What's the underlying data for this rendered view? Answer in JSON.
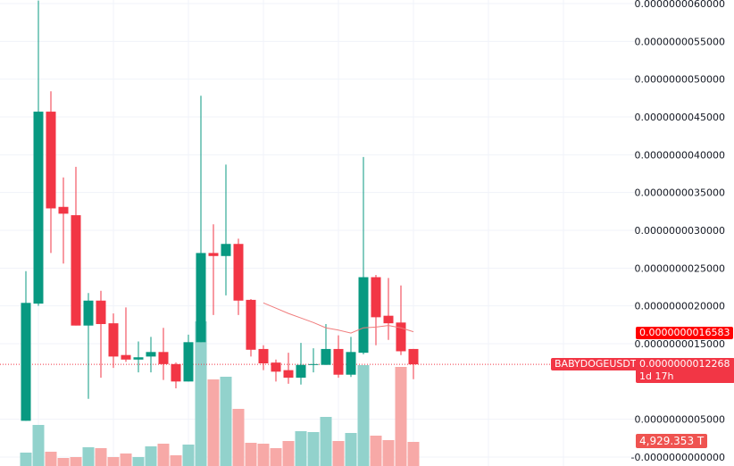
{
  "symbol": "BABYDOGEUSDT",
  "colors": {
    "up": "#089981",
    "down": "#f23645",
    "volume_up": "#92d2cc",
    "volume_down": "#f7a9a7",
    "ma": "#f07c7c",
    "ma_label": "#ff0000",
    "grid": "#f0f3fa"
  },
  "price_axis": {
    "ticks": [
      {
        "value": 6e-09,
        "label": "0.0000000060000"
      },
      {
        "value": 5.5e-09,
        "label": "0.0000000055000"
      },
      {
        "value": 5e-09,
        "label": "0.0000000050000"
      },
      {
        "value": 4.5e-09,
        "label": "0.0000000045000"
      },
      {
        "value": 4e-09,
        "label": "0.0000000040000"
      },
      {
        "value": 3.5e-09,
        "label": "0.0000000035000"
      },
      {
        "value": 3e-09,
        "label": "0.0000000030000"
      },
      {
        "value": 2.5e-09,
        "label": "0.0000000025000"
      },
      {
        "value": 2e-09,
        "label": "0.0000000020000"
      },
      {
        "value": 1.5e-09,
        "label": "0.0000000015000"
      },
      {
        "value": 5e-10,
        "label": "0.0000000005000"
      },
      {
        "value": 0,
        "label": "-0.0000000000000"
      }
    ]
  },
  "tags": {
    "ma_value": "0.0000000016583",
    "last_price": "0.0000000012268",
    "countdown": "1d 17h",
    "symbol_label": "BABYDOGEUSDT",
    "volume": "4,929.353 T"
  },
  "chart_data": {
    "type": "candlestick",
    "ylim": [
      0,
      6e-09
    ],
    "grid": true,
    "last_price": 1.2268e-09,
    "candles": [
      {
        "o": 4.8e-10,
        "h": 2.46e-09,
        "l": 4.8e-10,
        "c": 2.04e-09,
        "v": 2739
      },
      {
        "o": 2.03e-09,
        "h": 6.04e-09,
        "l": 2e-09,
        "c": 4.57e-09,
        "v": 8400
      },
      {
        "o": 4.57e-09,
        "h": 4.84e-09,
        "l": 2.7e-09,
        "c": 3.29e-09,
        "v": 2921
      },
      {
        "o": 3.31e-09,
        "h": 3.7e-09,
        "l": 2.56e-09,
        "c": 3.22e-09,
        "v": 1643
      },
      {
        "o": 3.2e-09,
        "h": 3.84e-09,
        "l": 1.74e-09,
        "c": 1.74e-09,
        "v": 1826
      },
      {
        "o": 1.74e-09,
        "h": 2.17e-09,
        "l": 7.7e-10,
        "c": 2.07e-09,
        "v": 3834
      },
      {
        "o": 2.07e-09,
        "h": 2.2e-09,
        "l": 1.05e-09,
        "c": 1.76e-09,
        "v": 3652
      },
      {
        "o": 1.77e-09,
        "h": 1.9e-09,
        "l": 1.18e-09,
        "c": 1.33e-09,
        "v": 1826
      },
      {
        "o": 1.35e-09,
        "h": 1.98e-09,
        "l": 1.26e-09,
        "c": 1.29e-09,
        "v": 2556
      },
      {
        "o": 1.29e-09,
        "h": 1.53e-09,
        "l": 1.12e-09,
        "c": 1.32e-09,
        "v": 1826
      },
      {
        "o": 1.33e-09,
        "h": 1.59e-09,
        "l": 1.12e-09,
        "c": 1.39e-09,
        "v": 4017
      },
      {
        "o": 1.39e-09,
        "h": 1.71e-09,
        "l": 1.02e-09,
        "c": 1.23e-09,
        "v": 4565
      },
      {
        "o": 1.23e-09,
        "h": 1.25e-09,
        "l": 9.1e-10,
        "c": 1e-09,
        "v": 2191
      },
      {
        "o": 1e-09,
        "h": 1.62e-09,
        "l": 1e-09,
        "c": 1.52e-09,
        "v": 4382
      },
      {
        "o": 1.52e-09,
        "h": 4.78e-09,
        "l": 1.52e-09,
        "c": 2.7e-09,
        "v": 29580
      },
      {
        "o": 2.7e-09,
        "h": 3.08e-09,
        "l": 1.88e-09,
        "c": 2.66e-09,
        "v": 17711
      },
      {
        "o": 2.66e-09,
        "h": 3.87e-09,
        "l": 2.14e-09,
        "c": 2.82e-09,
        "v": 18259
      },
      {
        "o": 2.82e-09,
        "h": 2.89e-09,
        "l": 1.88e-09,
        "c": 2.07e-09,
        "v": 11686
      },
      {
        "o": 2.08e-09,
        "h": 2.09e-09,
        "l": 1.33e-09,
        "c": 1.42e-09,
        "v": 4747
      },
      {
        "o": 1.43e-09,
        "h": 1.48e-09,
        "l": 1.15e-09,
        "c": 1.24e-09,
        "v": 4565
      },
      {
        "o": 1.25e-09,
        "h": 1.29e-09,
        "l": 1e-09,
        "c": 1.13e-09,
        "v": 3652
      },
      {
        "o": 1.15e-09,
        "h": 1.38e-09,
        "l": 9.7e-10,
        "c": 1.05e-09,
        "v": 5113
      },
      {
        "o": 1.05e-09,
        "h": 1.51e-09,
        "l": 9.6e-10,
        "c": 1.22e-09,
        "v": 7121
      },
      {
        "o": 1.22e-09,
        "h": 1.44e-09,
        "l": 1.12e-09,
        "c": 1.23e-09,
        "v": 6938
      },
      {
        "o": 1.22e-09,
        "h": 1.76e-09,
        "l": 1.22e-09,
        "c": 1.43e-09,
        "v": 10043
      },
      {
        "o": 1.43e-09,
        "h": 1.61e-09,
        "l": 1.05e-09,
        "c": 1.09e-09,
        "v": 5113
      },
      {
        "o": 1.09e-09,
        "h": 1.59e-09,
        "l": 1.06e-09,
        "c": 1.39e-09,
        "v": 6756
      },
      {
        "o": 1.38e-09,
        "h": 3.97e-09,
        "l": 1.36e-09,
        "c": 2.38e-09,
        "v": 20633
      },
      {
        "o": 2.38e-09,
        "h": 2.41e-09,
        "l": 1.48e-09,
        "c": 1.85e-09,
        "v": 6208
      },
      {
        "o": 1.87e-09,
        "h": 2.37e-09,
        "l": 1.55e-09,
        "c": 1.77e-09,
        "v": 5295
      },
      {
        "o": 1.78e-09,
        "h": 2.27e-09,
        "l": 1.35e-09,
        "c": 1.4e-09,
        "v": 20268
      },
      {
        "o": 1.43e-09,
        "h": 1.43e-09,
        "l": 1.03e-09,
        "c": 1.2268e-09,
        "v": 4929.353
      }
    ],
    "volume_unit": "T",
    "moving_average": [
      null,
      null,
      null,
      null,
      null,
      null,
      null,
      null,
      null,
      null,
      null,
      null,
      null,
      null,
      null,
      null,
      null,
      null,
      null,
      2.04e-09,
      1.97e-09,
      1.9e-09,
      1.84e-09,
      1.78e-09,
      1.71e-09,
      1.68e-09,
      1.64e-09,
      1.71e-09,
      1.72e-09,
      1.74e-09,
      1.71e-09,
      1.6583e-09
    ]
  }
}
